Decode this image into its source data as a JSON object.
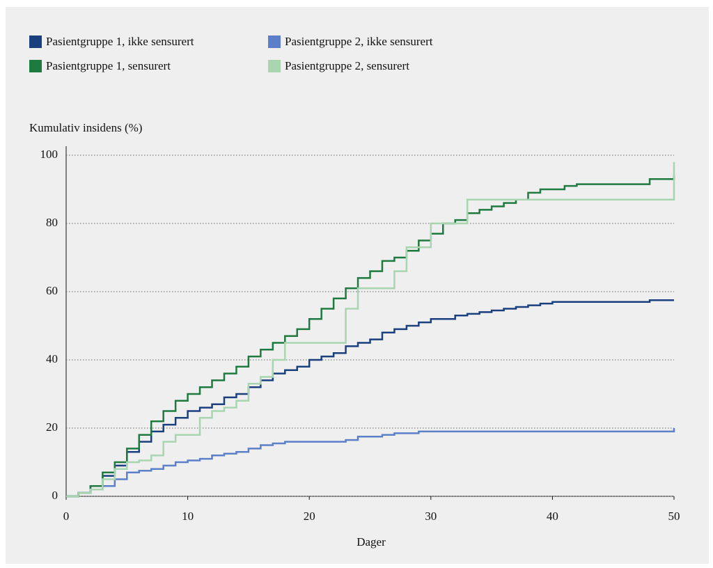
{
  "chart_data": {
    "type": "line",
    "y_axis_label": "Kumulativ insidens (%)",
    "x_axis_label": "Dager",
    "x": [
      0,
      1,
      2,
      3,
      4,
      5,
      6,
      7,
      8,
      9,
      10,
      11,
      12,
      13,
      14,
      15,
      16,
      17,
      18,
      19,
      20,
      21,
      22,
      23,
      24,
      25,
      26,
      27,
      28,
      29,
      30,
      31,
      32,
      33,
      34,
      35,
      36,
      37,
      38,
      39,
      40,
      41,
      42,
      43,
      44,
      45,
      46,
      47,
      48,
      49,
      50
    ],
    "series": [
      {
        "name": "Pasientgruppe 1, ikke sensurert",
        "color": "#1a3f7e",
        "values": [
          0,
          1,
          3,
          6,
          9,
          13,
          16,
          19,
          21,
          23,
          25,
          26,
          27,
          29,
          30,
          32,
          34,
          36,
          37,
          38,
          40,
          41,
          42,
          44,
          45,
          46,
          48,
          49,
          50,
          51,
          52,
          52,
          53,
          53.5,
          54,
          54.5,
          55,
          55.5,
          56,
          56.5,
          57,
          57,
          57,
          57,
          57,
          57,
          57,
          57,
          57.5,
          57.5,
          57.5
        ]
      },
      {
        "name": "Pasientgruppe 2, ikke sensurert",
        "color": "#5b7fc9",
        "values": [
          0,
          1,
          2,
          3,
          5,
          7,
          7.5,
          8,
          9,
          10,
          10.5,
          11,
          12,
          12.5,
          13,
          14,
          15,
          15.5,
          16,
          16,
          16,
          16,
          16,
          16.5,
          17.5,
          17.5,
          18,
          18.5,
          18.5,
          19,
          19,
          19,
          19,
          19,
          19,
          19,
          19,
          19,
          19,
          19,
          19,
          19,
          19,
          19,
          19,
          19,
          19,
          19,
          19,
          19,
          20
        ]
      },
      {
        "name": "Pasientgruppe 1, sensurert",
        "color": "#1e7a3e",
        "values": [
          0,
          1,
          3,
          7,
          10,
          14,
          18,
          22,
          25,
          28,
          30,
          32,
          34,
          36,
          38,
          41,
          43,
          45,
          47,
          49,
          52,
          55,
          58,
          61,
          64,
          66,
          69,
          70,
          72,
          75,
          77,
          80,
          81,
          83,
          84,
          85,
          86,
          87,
          89,
          90,
          90,
          91,
          91.5,
          91.5,
          91.5,
          91.5,
          91.5,
          91.5,
          93,
          93,
          94
        ]
      },
      {
        "name": "Pasientgruppe 2, sensurert",
        "color": "#a8d5b0",
        "values": [
          0,
          1,
          2,
          5,
          8,
          10,
          10.5,
          12,
          16,
          18,
          18,
          23,
          25,
          26,
          28,
          33,
          35,
          40,
          45,
          45,
          45,
          45,
          45,
          55,
          61,
          61,
          61,
          66,
          73,
          73,
          80,
          80,
          80,
          87,
          87,
          87,
          87,
          87,
          87,
          87,
          87,
          87,
          87,
          87,
          87,
          87,
          87,
          87,
          87,
          87,
          98
        ]
      }
    ],
    "xlim": [
      0,
      50
    ],
    "xticks": [
      0,
      10,
      20,
      30,
      40,
      50
    ],
    "ylim": [
      0,
      100
    ],
    "yticks": [
      0,
      20,
      40,
      60,
      80,
      100
    ],
    "grid": true
  }
}
